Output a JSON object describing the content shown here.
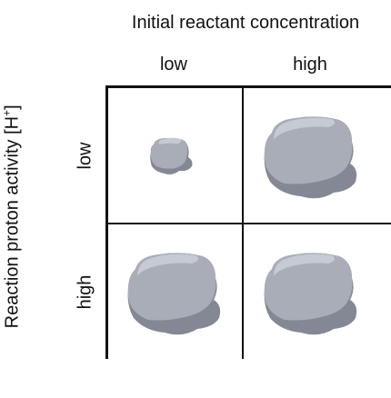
{
  "column_axis": {
    "title": "Initial reactant concentration",
    "labels": [
      "low",
      "high"
    ]
  },
  "row_axis": {
    "title": "Reaction proton activity [H",
    "title_superscript": "+",
    "title_suffix": "]",
    "labels": [
      "low",
      "high"
    ]
  },
  "colors": {
    "particle_body": "#a9adb8",
    "particle_shade": "#848894",
    "particle_highlight": "#c6cad3",
    "grid_lines": "#111111"
  }
}
